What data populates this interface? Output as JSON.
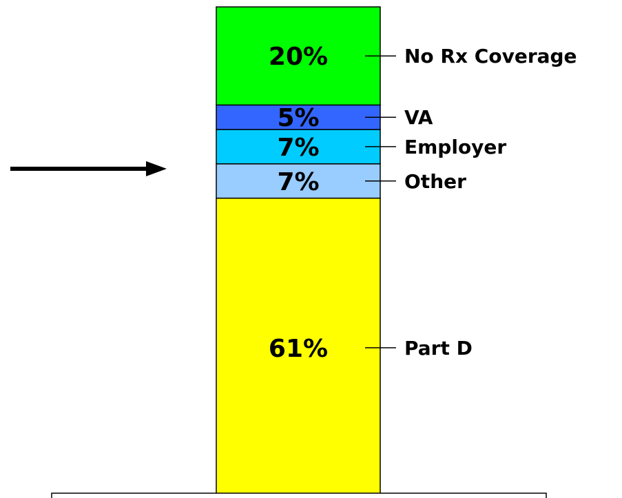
{
  "chart_data": {
    "type": "bar",
    "stacked": true,
    "categories": [
      null
    ],
    "series": [
      {
        "name": "Part D",
        "color": "#ffff00",
        "values": [
          61
        ],
        "value_labels": [
          "61%"
        ]
      },
      {
        "name": "Other",
        "color": "#99ccff",
        "values": [
          7
        ],
        "value_labels": [
          "7%"
        ]
      },
      {
        "name": "Employer",
        "color": "#00ccff",
        "values": [
          7
        ],
        "value_labels": [
          "7%"
        ]
      },
      {
        "name": "VA",
        "color": "#3366ff",
        "values": [
          5
        ],
        "value_labels": [
          "5%"
        ]
      },
      {
        "name": "No Rx Coverage",
        "color": "#00ff00",
        "values": [
          20
        ],
        "value_labels": [
          "20%"
        ]
      }
    ]
  }
}
